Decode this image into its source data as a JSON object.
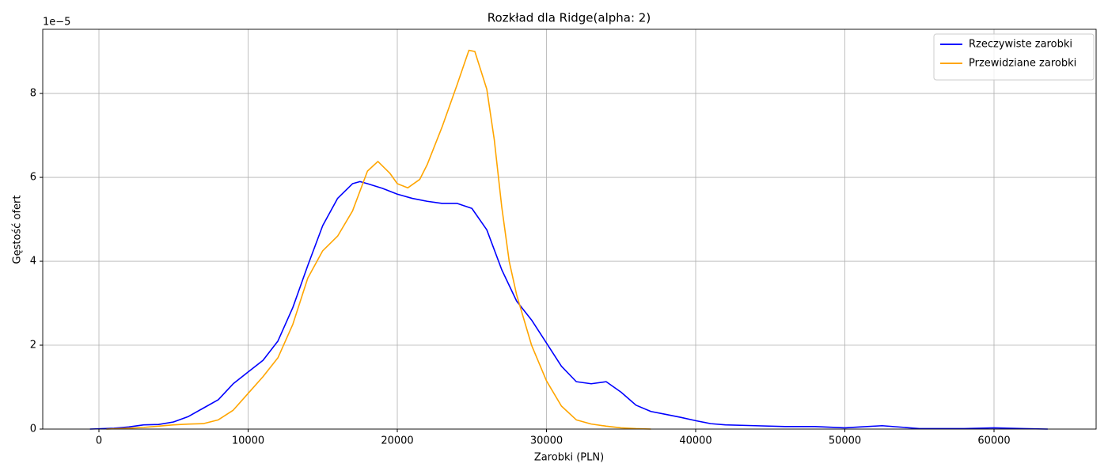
{
  "chart_data": {
    "type": "line",
    "title": "Rozkład dla Ridge(alpha: 2)",
    "x_label": "Zarobki (PLN)",
    "y_label": "Gęstość ofert",
    "y_offset_label": "1e−5",
    "xlim": [
      -3767,
      66844
    ],
    "ylim": [
      0,
      9.53
    ],
    "xticks": [
      0,
      10000,
      20000,
      30000,
      40000,
      50000,
      60000
    ],
    "yticks": [
      0,
      2,
      4,
      6,
      8
    ],
    "grid": true,
    "legend": "upper right",
    "series": [
      {
        "name": "Rzeczywiste zarobki",
        "color": "#0000ff",
        "x": [
          -600,
          1000,
          2000,
          3000,
          4000,
          5000,
          6000,
          7000,
          8000,
          9000,
          10000,
          11000,
          12000,
          13000,
          14000,
          15000,
          16000,
          17000,
          17500,
          18000,
          19000,
          20000,
          21000,
          22000,
          23000,
          24000,
          25000,
          26000,
          27000,
          28000,
          29000,
          30000,
          31000,
          32000,
          33000,
          34000,
          35000,
          36000,
          37000,
          38000,
          39000,
          40000,
          41000,
          42000,
          44000,
          46000,
          48000,
          50000,
          51000,
          52500,
          54000,
          55000,
          58000,
          60000,
          62000,
          63600
        ],
        "values": [
          0,
          0.02,
          0.05,
          0.1,
          0.11,
          0.17,
          0.3,
          0.5,
          0.7,
          1.08,
          1.36,
          1.64,
          2.1,
          2.9,
          3.9,
          4.85,
          5.5,
          5.85,
          5.9,
          5.85,
          5.74,
          5.6,
          5.5,
          5.43,
          5.38,
          5.38,
          5.26,
          4.75,
          3.8,
          3.05,
          2.6,
          2.05,
          1.5,
          1.13,
          1.08,
          1.13,
          0.88,
          0.57,
          0.42,
          0.35,
          0.28,
          0.2,
          0.13,
          0.1,
          0.08,
          0.06,
          0.06,
          0.03,
          0.05,
          0.08,
          0.04,
          0.01,
          0.01,
          0.03,
          0.01,
          0
        ]
      },
      {
        "name": "Przewidziane zarobki",
        "color": "#ffa500",
        "x": [
          500,
          2000,
          3000,
          4000,
          5000,
          6000,
          7000,
          8000,
          9000,
          10000,
          11000,
          12000,
          13000,
          14000,
          15000,
          16000,
          17000,
          18000,
          18700,
          19500,
          20000,
          20700,
          21500,
          22000,
          23000,
          24000,
          24800,
          25200,
          26000,
          26500,
          27000,
          27500,
          28000,
          28500,
          29000,
          30000,
          31000,
          32000,
          33000,
          34000,
          35000,
          36000,
          37000
        ],
        "values": [
          0,
          0.02,
          0.04,
          0.07,
          0.1,
          0.12,
          0.13,
          0.22,
          0.45,
          0.85,
          1.25,
          1.7,
          2.5,
          3.6,
          4.25,
          4.6,
          5.2,
          6.15,
          6.38,
          6.1,
          5.85,
          5.75,
          5.95,
          6.3,
          7.2,
          8.2,
          9.03,
          9.0,
          8.1,
          6.9,
          5.3,
          4.0,
          3.2,
          2.6,
          2.0,
          1.15,
          0.55,
          0.22,
          0.12,
          0.07,
          0.03,
          0.01,
          0
        ]
      }
    ]
  }
}
